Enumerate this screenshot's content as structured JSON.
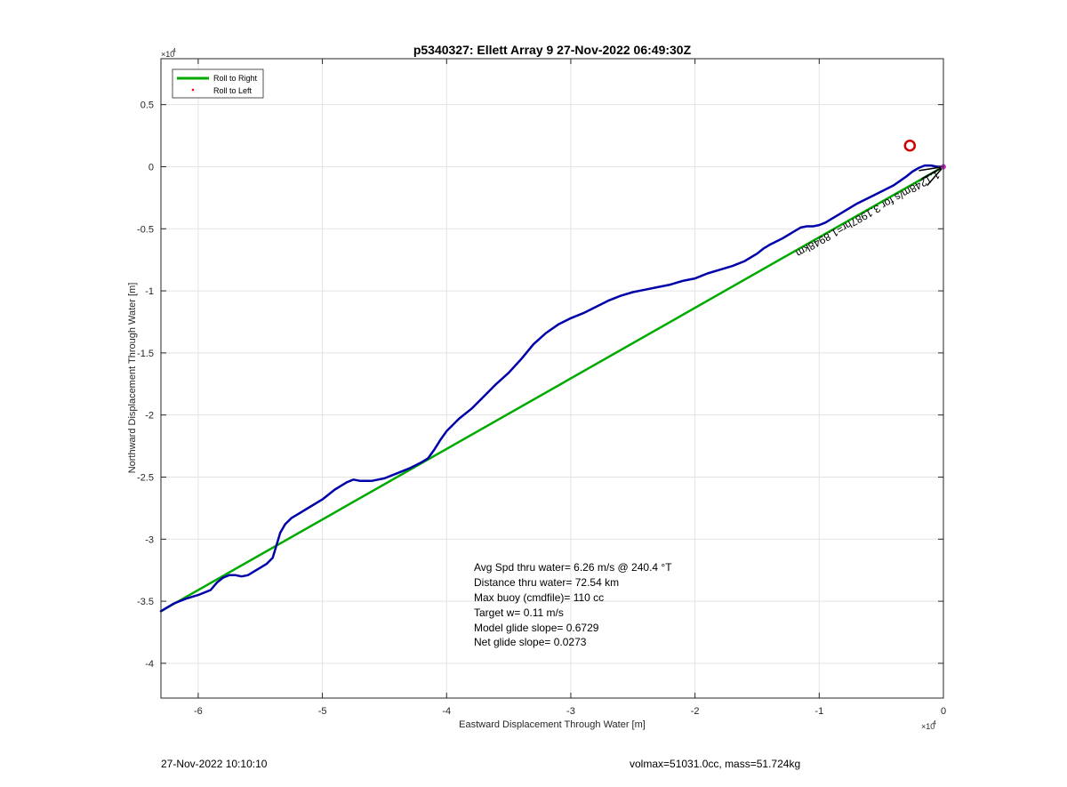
{
  "chart_data": {
    "type": "line",
    "title": "p5340327: Ellett Array 9 27-Nov-2022 06:49:30Z",
    "xlabel": "Eastward Displacement Through Water [m]",
    "ylabel": "Northward Displacement Through Water [m]",
    "x_exponent_label": "×10",
    "x_exponent_power": "4",
    "y_exponent_label": "×10",
    "y_exponent_power": "4",
    "xlim": [
      -6.3,
      0
    ],
    "ylim": [
      -4.28,
      0.87
    ],
    "xticks": [
      -6,
      -5,
      -4,
      -3,
      -2,
      -1,
      0
    ],
    "xtick_labels": [
      "-6",
      "-5",
      "-4",
      "-3",
      "-2",
      "-1",
      "0"
    ],
    "yticks": [
      0.5,
      0,
      -0.5,
      -1,
      -1.5,
      -2,
      -2.5,
      -3,
      -3.5,
      -4
    ],
    "ytick_labels": [
      "0.5",
      "0",
      "-0.5",
      "-1",
      "-1.5",
      "-2",
      "-2.5",
      "-3",
      "-3.5",
      "-4"
    ],
    "grid": true,
    "legend": {
      "placement": "top-left",
      "entries": [
        {
          "label": "Roll to Right",
          "color": "#00aa00",
          "style": "line"
        },
        {
          "label": "Roll to Left",
          "color": "#ff0000",
          "style": "dot"
        }
      ]
    },
    "series": [
      {
        "name": "Roll to Right",
        "color": "#00aa00",
        "x": [
          -6.3,
          0
        ],
        "y": [
          -3.58,
          0
        ]
      },
      {
        "color": "#0000aa",
        "x": [
          -6.3,
          -6.2,
          -6.1,
          -6.0,
          -5.9,
          -5.85,
          -5.8,
          -5.75,
          -5.7,
          -5.65,
          -5.6,
          -5.55,
          -5.5,
          -5.45,
          -5.4,
          -5.37,
          -5.34,
          -5.3,
          -5.25,
          -5.2,
          -5.1,
          -5.0,
          -4.9,
          -4.8,
          -4.75,
          -4.7,
          -4.6,
          -4.5,
          -4.4,
          -4.3,
          -4.2,
          -4.15,
          -4.1,
          -4.05,
          -4.0,
          -3.9,
          -3.8,
          -3.7,
          -3.6,
          -3.5,
          -3.4,
          -3.3,
          -3.2,
          -3.1,
          -3.0,
          -2.9,
          -2.8,
          -2.7,
          -2.6,
          -2.5,
          -2.4,
          -2.3,
          -2.2,
          -2.1,
          -2.0,
          -1.95,
          -1.9,
          -1.8,
          -1.7,
          -1.6,
          -1.5,
          -1.45,
          -1.4,
          -1.3,
          -1.2,
          -1.15,
          -1.1,
          -1.05,
          -1.0,
          -0.95,
          -0.9,
          -0.85,
          -0.8,
          -0.7,
          -0.6,
          -0.5,
          -0.4,
          -0.3,
          -0.25,
          -0.2,
          -0.15,
          -0.1,
          -0.05,
          0.0
        ],
        "y": [
          -3.58,
          -3.52,
          -3.48,
          -3.45,
          -3.41,
          -3.35,
          -3.31,
          -3.29,
          -3.29,
          -3.3,
          -3.29,
          -3.26,
          -3.23,
          -3.2,
          -3.15,
          -3.05,
          -2.95,
          -2.88,
          -2.83,
          -2.8,
          -2.74,
          -2.68,
          -2.6,
          -2.54,
          -2.52,
          -2.53,
          -2.53,
          -2.51,
          -2.47,
          -2.43,
          -2.38,
          -2.35,
          -2.28,
          -2.2,
          -2.13,
          -2.03,
          -1.95,
          -1.85,
          -1.75,
          -1.66,
          -1.55,
          -1.43,
          -1.34,
          -1.27,
          -1.22,
          -1.18,
          -1.13,
          -1.08,
          -1.04,
          -1.01,
          -0.99,
          -0.97,
          -0.95,
          -0.92,
          -0.9,
          -0.88,
          -0.86,
          -0.83,
          -0.8,
          -0.76,
          -0.7,
          -0.66,
          -0.63,
          -0.58,
          -0.52,
          -0.49,
          -0.48,
          -0.48,
          -0.47,
          -0.45,
          -0.42,
          -0.39,
          -0.36,
          -0.3,
          -0.25,
          -0.2,
          -0.15,
          -0.08,
          -0.04,
          -0.01,
          0.01,
          0.01,
          0.0,
          0.0
        ]
      }
    ],
    "marker": {
      "x": -0.27,
      "y": 0.17,
      "color": "#d00000",
      "shape": "circle"
    },
    "rotated_text": "1.1248m/s for 3.1987hr=1.8948km",
    "annotation_lines": [
      "Avg Spd thru water=  6.26 m/s @ 240.4 °T",
      "Distance thru water= 72.54 km",
      "Max buoy (cmdfile)= 110 cc",
      "Target w= 0.11 m/s",
      "Model glide slope= 0.6729",
      "Net glide slope= 0.0273"
    ]
  },
  "footer": {
    "left": "27-Nov-2022 10:10:10",
    "right": "volmax=51031.0cc, mass=51.724kg"
  }
}
